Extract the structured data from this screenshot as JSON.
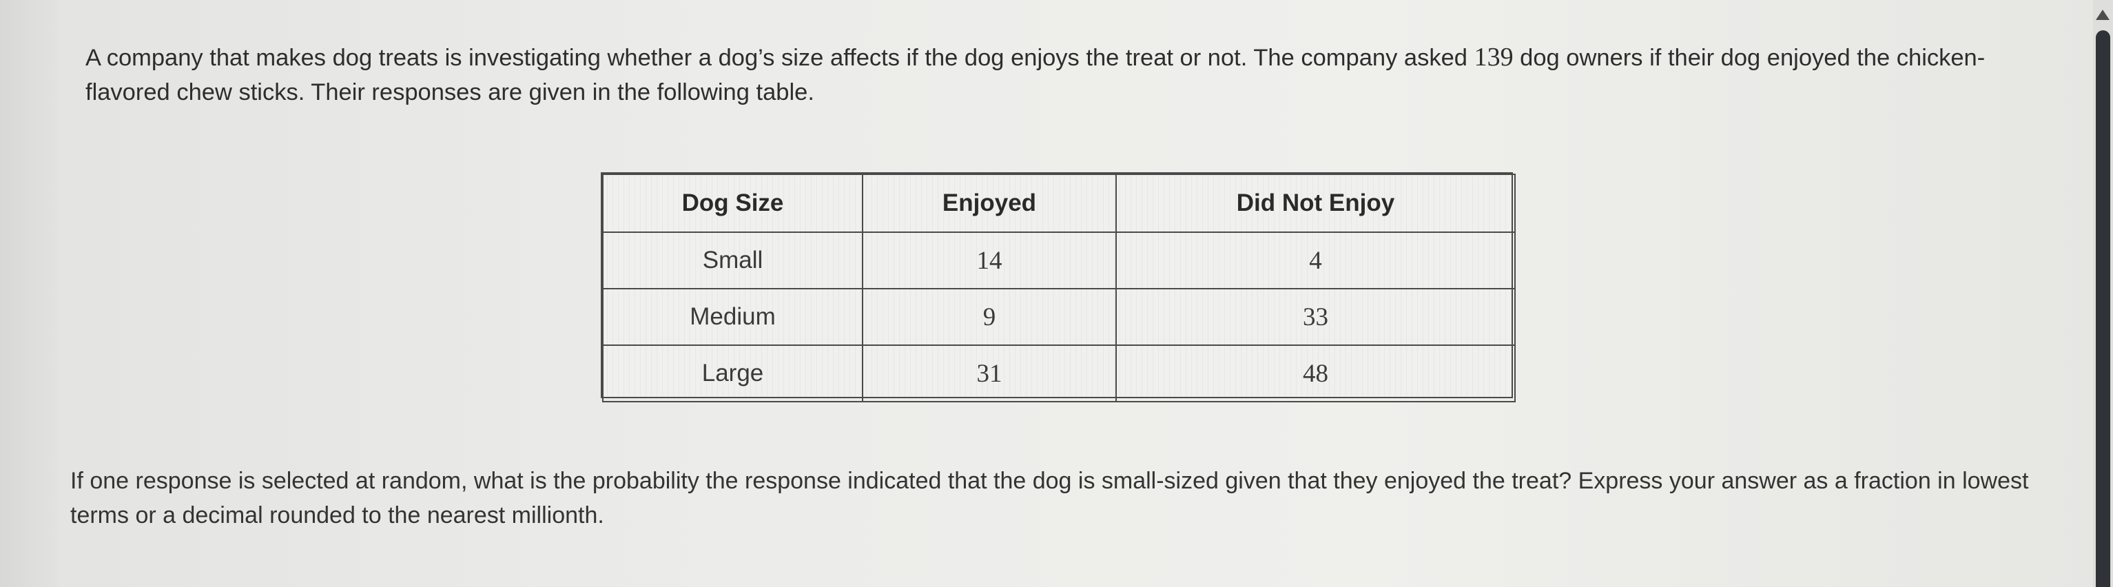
{
  "problem": {
    "intro_before_count": "A company that makes dog treats is investigating whether a dog’s size affects if the dog enjoys the treat or not. The company asked ",
    "owner_count": "139",
    "intro_after_count": " dog owners if their dog enjoyed the chicken-flavored chew sticks. Their responses are given in the following table.",
    "question": "If one response is selected at random, what is the probability the response indicated that the dog is small-sized given that they enjoyed the treat? Express your answer as a fraction in lowest terms or a decimal rounded to the nearest millionth."
  },
  "table": {
    "headers": [
      "Dog Size",
      "Enjoyed",
      "Did Not Enjoy"
    ],
    "rows": [
      {
        "size": "Small",
        "enjoyed": "14",
        "did_not_enjoy": "4"
      },
      {
        "size": "Medium",
        "enjoyed": "9",
        "did_not_enjoy": "33"
      },
      {
        "size": "Large",
        "enjoyed": "31",
        "did_not_enjoy": "48"
      }
    ]
  },
  "scrollbar": {
    "up_icon": "triangle-up-icon"
  }
}
